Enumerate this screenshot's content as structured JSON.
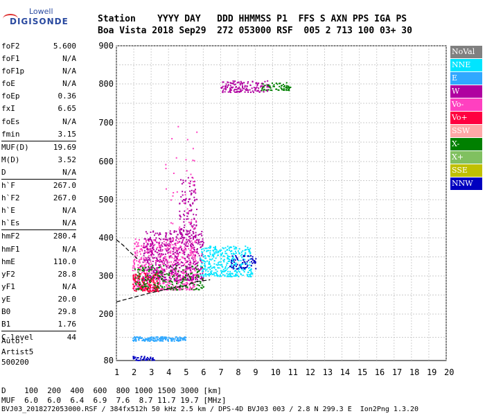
{
  "logo": {
    "line1": "Lowell",
    "line2": "DIGISONDE"
  },
  "header": {
    "labels": "Station    YYYY DAY   DDD HHMMSS P1  FFS S AXN PPS IGA PS",
    "values": "Boa Vista 2018 Sep29  272 053000 RSF  005 2 713 100 03+ 30"
  },
  "params_group1": [
    {
      "name": "foF2",
      "value": "5.600"
    },
    {
      "name": "foF1",
      "value": "N/A"
    },
    {
      "name": "foF1p",
      "value": "N/A"
    },
    {
      "name": "foE",
      "value": "N/A"
    },
    {
      "name": "foEp",
      "value": "0.36"
    },
    {
      "name": "fxI",
      "value": "6.65"
    },
    {
      "name": "foEs",
      "value": "N/A"
    },
    {
      "name": "fmin",
      "value": "3.15"
    }
  ],
  "params_group2": [
    {
      "name": "MUF(D)",
      "value": "19.69"
    },
    {
      "name": "M(D)",
      "value": "3.52"
    },
    {
      "name": "D",
      "value": "N/A"
    }
  ],
  "params_group3": [
    {
      "name": "h`F",
      "value": "267.0"
    },
    {
      "name": "h`F2",
      "value": "267.0"
    },
    {
      "name": "h`E",
      "value": "N/A"
    },
    {
      "name": "h`Es",
      "value": "N/A"
    }
  ],
  "params_group4": [
    {
      "name": "hmF2",
      "value": "280.4"
    },
    {
      "name": "hmF1",
      "value": "N/A"
    },
    {
      "name": "hmE",
      "value": "110.0"
    },
    {
      "name": "yF2",
      "value": "28.8"
    },
    {
      "name": "yF1",
      "value": "N/A"
    },
    {
      "name": "yE",
      "value": "20.0"
    },
    {
      "name": "B0",
      "value": "29.8"
    },
    {
      "name": "B1",
      "value": "1.76"
    }
  ],
  "params_group5": [
    {
      "name": "C-level",
      "value": "44"
    }
  ],
  "auto": {
    "line1": "Auto:",
    "line2": "Artist5",
    "line3": "500200"
  },
  "legend": [
    {
      "label": "NoVal",
      "color": "#808080"
    },
    {
      "label": "NNE",
      "color": "#00e5ff"
    },
    {
      "label": "E",
      "color": "#30a8ff"
    },
    {
      "label": "W",
      "color": "#b000a0"
    },
    {
      "label": "Vo-",
      "color": "#ff40c0"
    },
    {
      "label": "Vo+",
      "color": "#ff0040"
    },
    {
      "label": "SSW",
      "color": "#ffa8a8"
    },
    {
      "label": "X-",
      "color": "#008000"
    },
    {
      "label": "X+",
      "color": "#80c060"
    },
    {
      "label": "SSE",
      "color": "#c0c000"
    },
    {
      "label": "NNW",
      "color": "#0000c0"
    }
  ],
  "bottom": {
    "line1": "D    100  200  400  600  800 1000 1500 3000 [km]",
    "line2": "MUF  6.0  6.0  6.4  6.9  7.6  8.7 11.7 19.7 [MHz]",
    "line3": "BVJ03_2018272053000.RSF / 384fx512h 50 kHz 2.5 km / DPS-4D BVJ03 003 / 2.8 N 299.3 E  Ion2Png 1.3.20"
  },
  "chart_data": {
    "type": "scatter",
    "title": "",
    "xlabel": "",
    "ylabel": "",
    "xlim": [
      1,
      20
    ],
    "ylim": [
      80,
      900
    ],
    "x_ticks": [
      1,
      2,
      3,
      4,
      5,
      6,
      7,
      8,
      9,
      10,
      11,
      12,
      13,
      14,
      15,
      16,
      17,
      18,
      19,
      20
    ],
    "y_ticks": [
      80,
      200,
      300,
      400,
      500,
      600,
      700,
      800,
      900
    ],
    "grid": true,
    "clusters": [
      {
        "name": "F-trace main",
        "color": "#ff40c0",
        "x_range": [
          1.9,
          5.6
        ],
        "y_range": [
          265,
          400
        ],
        "count": 700
      },
      {
        "name": "F-trace W",
        "color": "#b000a0",
        "x_range": [
          2.5,
          6.0
        ],
        "y_range": [
          290,
          420
        ],
        "count": 500
      },
      {
        "name": "F-trace Vo+",
        "color": "#ff0040",
        "x_range": [
          1.9,
          3.4
        ],
        "y_range": [
          260,
          310
        ],
        "count": 150
      },
      {
        "name": "F-trace NNE",
        "color": "#00e5ff",
        "x_range": [
          5.8,
          8.8
        ],
        "y_range": [
          300,
          380
        ],
        "count": 350
      },
      {
        "name": "F-trace NNW",
        "color": "#0000c0",
        "x_range": [
          7.5,
          9.0
        ],
        "y_range": [
          320,
          355
        ],
        "count": 60
      },
      {
        "name": "X-",
        "color": "#008000",
        "x_range": [
          2.0,
          6.0
        ],
        "y_range": [
          265,
          330
        ],
        "count": 200
      },
      {
        "name": "Spread F",
        "color": "#b000a0",
        "x_range": [
          4.6,
          5.6
        ],
        "y_range": [
          400,
          560
        ],
        "count": 120
      },
      {
        "name": "Spread F upper",
        "color": "#ff40c0",
        "x_range": [
          3.8,
          5.6
        ],
        "y_range": [
          420,
          700
        ],
        "count": 40
      },
      {
        "name": "Multi-hop",
        "color": "#b000a0",
        "x_range": [
          7.0,
          9.8
        ],
        "y_range": [
          780,
          810
        ],
        "count": 150
      },
      {
        "name": "Multi-hop X",
        "color": "#008000",
        "x_range": [
          9.3,
          11.0
        ],
        "y_range": [
          785,
          805
        ],
        "count": 60
      },
      {
        "name": "E echo",
        "color": "#30a8ff",
        "x_range": [
          1.9,
          5.0
        ],
        "y_range": [
          132,
          143
        ],
        "count": 160
      },
      {
        "name": "Low noise",
        "color": "#0000c0",
        "x_range": [
          1.9,
          3.2
        ],
        "y_range": [
          82,
          92
        ],
        "count": 40
      }
    ],
    "profile_curve": {
      "x": [
        1.0,
        2.0,
        3.0,
        4.0,
        5.0,
        5.6
      ],
      "y": [
        232,
        244,
        256,
        266,
        275,
        285
      ]
    },
    "profile_curve_upper": {
      "x": [
        1.0,
        1.4,
        1.8,
        2.2
      ],
      "y": [
        395,
        380,
        362,
        345
      ]
    },
    "profile_curve_lower": {
      "x": [
        5.6,
        6.4
      ],
      "y": [
        285,
        290
      ]
    }
  }
}
